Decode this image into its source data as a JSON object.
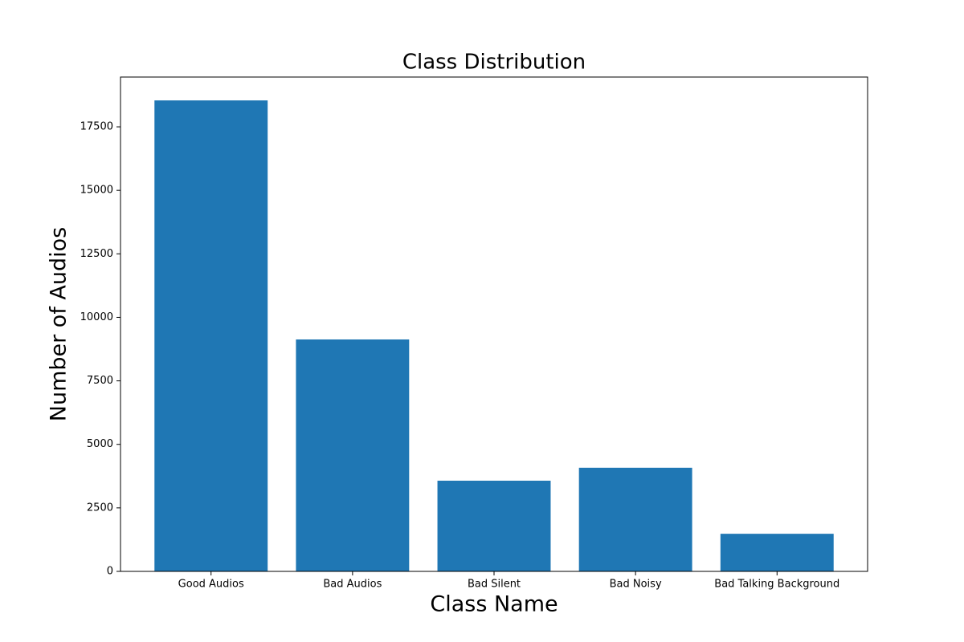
{
  "chart_data": {
    "type": "bar",
    "title": "Class Distribution",
    "x_label": "Class Name",
    "y_label": "Number of Audios",
    "categories": [
      "Good Audios",
      "Bad Audios",
      "Bad Silent",
      "Bad Noisy",
      "Bad Talking Background"
    ],
    "values": [
      18540,
      9130,
      3570,
      4080,
      1480
    ],
    "color": "#1f77b4",
    "ylim": [
      0,
      19460
    ],
    "yticks": [
      0,
      2500,
      5000,
      7500,
      10000,
      12500,
      15000,
      17500
    ]
  }
}
